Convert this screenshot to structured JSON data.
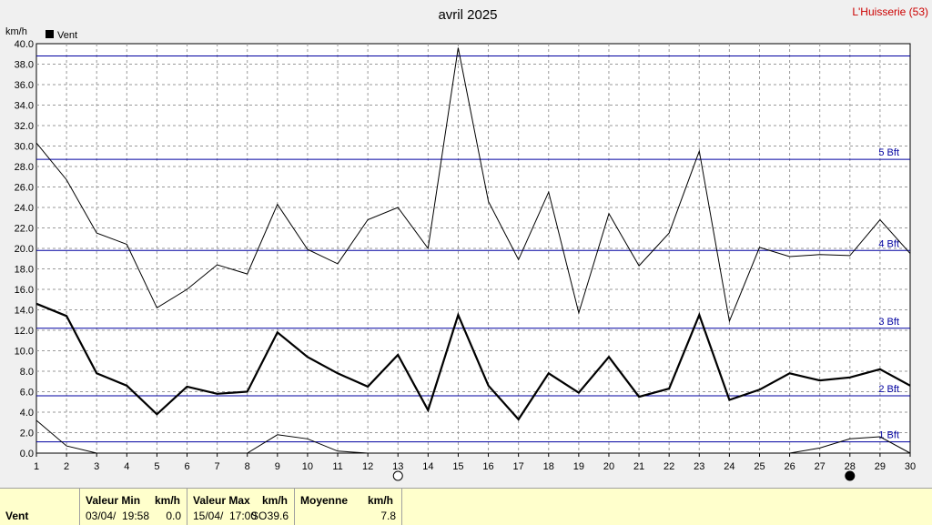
{
  "title": "avril 2025",
  "station": "L'Huisserie (53)",
  "legend": "Vent",
  "colors": {
    "grid": "#9a9a9a",
    "beaufort": "#0000a0",
    "series": "#000000",
    "footer_bg": "#ffffcc"
  },
  "chart_data": {
    "type": "line",
    "ylabel": "km/h",
    "ylim": [
      0,
      40
    ],
    "yticks": [
      "0.0",
      "2.0",
      "4.0",
      "6.0",
      "8.0",
      "10.0",
      "12.0",
      "14.0",
      "16.0",
      "18.0",
      "20.0",
      "22.0",
      "24.0",
      "26.0",
      "28.0",
      "30.0",
      "32.0",
      "34.0",
      "36.0",
      "38.0",
      "40.0"
    ],
    "x": [
      1,
      2,
      3,
      4,
      5,
      6,
      7,
      8,
      9,
      10,
      11,
      12,
      13,
      14,
      15,
      16,
      17,
      18,
      19,
      20,
      21,
      22,
      23,
      24,
      25,
      26,
      27,
      28,
      29,
      30
    ],
    "grid": true,
    "legend_position": "top-left",
    "series": [
      {
        "name": "Vent",
        "values": [
          14.6,
          13.4,
          7.8,
          6.6,
          3.8,
          6.5,
          5.8,
          6.0,
          11.8,
          9.4,
          7.8,
          6.5,
          9.6,
          4.2,
          13.5,
          6.6,
          3.3,
          7.8,
          5.9,
          9.4,
          5.5,
          6.3,
          13.5,
          5.2,
          6.2,
          7.8,
          7.1,
          7.4,
          8.2,
          6.6
        ]
      },
      {
        "values": [
          30.3,
          26.7,
          21.5,
          20.4,
          14.2,
          16.0,
          18.4,
          17.5,
          24.3,
          19.9,
          18.5,
          22.8,
          24.0,
          20.0,
          39.6,
          24.6,
          18.9,
          25.5,
          13.7,
          23.4,
          18.3,
          21.5,
          29.5,
          12.9,
          20.1,
          19.2,
          19.4,
          19.3,
          22.8,
          19.5
        ]
      },
      {
        "values": [
          3.2,
          0.7,
          0.0,
          0.0,
          0.0,
          0.0,
          0.0,
          0.0,
          1.8,
          1.4,
          0.2,
          0.0,
          0.0,
          0.0,
          0.0,
          0.0,
          0.0,
          0.0,
          0.0,
          0.0,
          0.0,
          0.0,
          0.0,
          0.0,
          0.0,
          0.0,
          0.5,
          1.4,
          1.6,
          0.0
        ]
      }
    ],
    "beaufort_lines": [
      {
        "label": "",
        "value": 38.8
      },
      {
        "label": "5 Bft",
        "value": 28.7
      },
      {
        "label": "4 Bft",
        "value": 19.8
      },
      {
        "label": "3 Bft",
        "value": 12.2
      },
      {
        "label": "2 Bft",
        "value": 5.6
      },
      {
        "label": "1 Bft",
        "value": 1.1
      }
    ],
    "moon_phases": [
      {
        "day": 13,
        "phase": "full"
      },
      {
        "day": 28,
        "phase": "new"
      }
    ]
  },
  "footer": {
    "name": "Vent",
    "min_header": "Valeur Min",
    "min_unit": "km/h",
    "min_date": "03/04/",
    "min_time": "19:58",
    "min_value": "0.0",
    "max_header": "Valeur Max",
    "max_unit": "km/h",
    "max_date": "15/04/",
    "max_time": "17:00",
    "max_dir": "SO",
    "max_value": "39.6",
    "avg_header": "Moyenne",
    "avg_unit": "km/h",
    "avg_value": "7.8"
  }
}
